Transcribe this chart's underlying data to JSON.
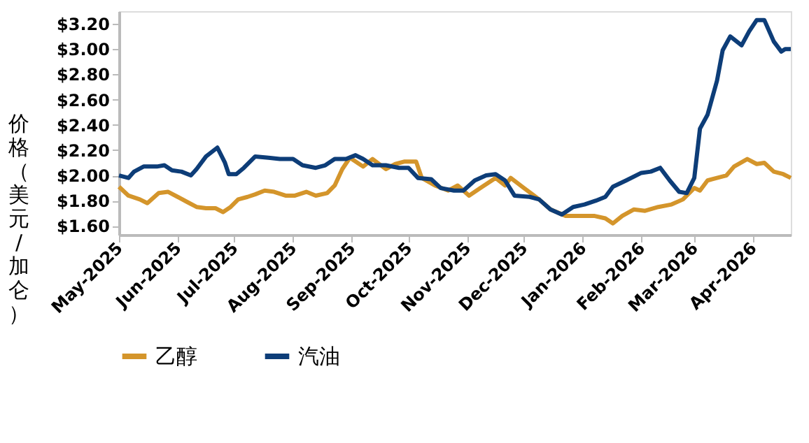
{
  "chart_data": {
    "type": "line",
    "ylabel": "价格（美元/加仑）",
    "xlim": [
      "2025-05-01",
      "2026-04-21"
    ],
    "ylim": [
      1.53,
      3.3
    ],
    "yticks": [
      {
        "value": 1.6,
        "label": "$1.60"
      },
      {
        "value": 1.8,
        "label": "$1.80"
      },
      {
        "value": 2.0,
        "label": "$2.00"
      },
      {
        "value": 2.2,
        "label": "$2.20"
      },
      {
        "value": 2.4,
        "label": "$2.40"
      },
      {
        "value": 2.6,
        "label": "$2.60"
      },
      {
        "value": 2.8,
        "label": "$2.80"
      },
      {
        "value": 3.0,
        "label": "$3.00"
      },
      {
        "value": 3.2,
        "label": "$3.20"
      }
    ],
    "xticks": [
      {
        "value": "2025-05-01",
        "label": "May-2025"
      },
      {
        "value": "2025-06-01",
        "label": "Jun-2025"
      },
      {
        "value": "2025-07-01",
        "label": "Jul-2025"
      },
      {
        "value": "2025-08-01",
        "label": "Aug-2025"
      },
      {
        "value": "2025-09-01",
        "label": "Sep-2025"
      },
      {
        "value": "2025-10-01",
        "label": "Oct-2025"
      },
      {
        "value": "2025-11-01",
        "label": "Nov-2025"
      },
      {
        "value": "2025-12-01",
        "label": "Dec-2025"
      },
      {
        "value": "2026-01-01",
        "label": "Jan-2026"
      },
      {
        "value": "2026-02-01",
        "label": "Feb-2026"
      },
      {
        "value": "2026-03-01",
        "label": "Mar-2026"
      },
      {
        "value": "2026-04-01",
        "label": "Apr-2026"
      }
    ],
    "grid": false,
    "legend": "bottom",
    "marker": "none",
    "line_style": "solid",
    "series": [
      {
        "name": "乙醇",
        "color": "#d4952b",
        "x": [
          "2025-05-01",
          "2025-05-06",
          "2025-05-12",
          "2025-05-16",
          "2025-05-22",
          "2025-05-27",
          "2025-06-01",
          "2025-06-06",
          "2025-06-11",
          "2025-06-16",
          "2025-06-21",
          "2025-06-25",
          "2025-06-29",
          "2025-07-03",
          "2025-07-08",
          "2025-07-12",
          "2025-07-17",
          "2025-07-22",
          "2025-07-28",
          "2025-08-02",
          "2025-08-08",
          "2025-08-13",
          "2025-08-19",
          "2025-08-23",
          "2025-08-27",
          "2025-08-31",
          "2025-09-07",
          "2025-09-12",
          "2025-09-19",
          "2025-09-24",
          "2025-09-29",
          "2025-10-05",
          "2025-10-08",
          "2025-10-15",
          "2025-10-22",
          "2025-10-27",
          "2025-11-02",
          "2025-11-08",
          "2025-11-16",
          "2025-11-21",
          "2025-11-24",
          "2025-12-01",
          "2025-12-09",
          "2025-12-15",
          "2025-12-23",
          "2025-12-31",
          "2026-01-07",
          "2026-01-13",
          "2026-01-17",
          "2026-01-22",
          "2026-01-28",
          "2026-02-03",
          "2026-02-10",
          "2026-02-17",
          "2026-02-23",
          "2026-03-01",
          "2026-03-04",
          "2026-03-08",
          "2026-03-13",
          "2026-03-18",
          "2026-03-22",
          "2026-03-29",
          "2026-04-03",
          "2026-04-07",
          "2026-04-12",
          "2026-04-17",
          "2026-04-21"
        ],
        "values": [
          1.91,
          1.84,
          1.81,
          1.78,
          1.86,
          1.87,
          1.83,
          1.79,
          1.75,
          1.74,
          1.74,
          1.71,
          1.75,
          1.81,
          1.83,
          1.85,
          1.88,
          1.87,
          1.84,
          1.84,
          1.87,
          1.84,
          1.86,
          1.92,
          2.05,
          2.14,
          2.07,
          2.13,
          2.05,
          2.09,
          2.11,
          2.11,
          1.98,
          1.92,
          1.88,
          1.92,
          1.84,
          1.9,
          1.98,
          1.92,
          1.98,
          1.9,
          1.81,
          1.73,
          1.68,
          1.68,
          1.68,
          1.66,
          1.62,
          1.68,
          1.73,
          1.72,
          1.75,
          1.77,
          1.81,
          1.9,
          1.88,
          1.96,
          1.98,
          2.0,
          2.07,
          2.13,
          2.09,
          2.1,
          2.03,
          2.01,
          1.98
        ]
      },
      {
        "name": "汽油",
        "color": "#0d3d78",
        "x": [
          "2025-05-01",
          "2025-05-06",
          "2025-05-09",
          "2025-05-14",
          "2025-05-21",
          "2025-05-25",
          "2025-05-29",
          "2025-06-03",
          "2025-06-08",
          "2025-06-11",
          "2025-06-16",
          "2025-06-22",
          "2025-06-26",
          "2025-06-28",
          "2025-07-02",
          "2025-07-06",
          "2025-07-12",
          "2025-07-19",
          "2025-07-25",
          "2025-08-01",
          "2025-08-06",
          "2025-08-13",
          "2025-08-18",
          "2025-08-23",
          "2025-08-29",
          "2025-09-03",
          "2025-09-07",
          "2025-09-12",
          "2025-09-19",
          "2025-09-26",
          "2025-10-01",
          "2025-10-06",
          "2025-10-13",
          "2025-10-18",
          "2025-10-25",
          "2025-10-30",
          "2025-11-05",
          "2025-11-11",
          "2025-11-16",
          "2025-11-21",
          "2025-11-26",
          "2025-12-04",
          "2025-12-09",
          "2025-12-15",
          "2025-12-21",
          "2025-12-27",
          "2026-01-02",
          "2026-01-08",
          "2026-01-13",
          "2026-01-17",
          "2026-01-24",
          "2026-02-01",
          "2026-02-06",
          "2026-02-11",
          "2026-02-16",
          "2026-02-21",
          "2026-02-25",
          "2026-03-01",
          "2026-03-04",
          "2026-03-08",
          "2026-03-13",
          "2026-03-16",
          "2026-03-20",
          "2026-03-26",
          "2026-03-30",
          "2026-04-03",
          "2026-04-07",
          "2026-04-12",
          "2026-04-16",
          "2026-04-18",
          "2026-04-21"
        ],
        "values": [
          2.0,
          1.98,
          2.03,
          2.07,
          2.07,
          2.08,
          2.04,
          2.03,
          2.0,
          2.05,
          2.15,
          2.22,
          2.1,
          2.01,
          2.01,
          2.06,
          2.15,
          2.14,
          2.13,
          2.13,
          2.08,
          2.06,
          2.08,
          2.13,
          2.13,
          2.16,
          2.13,
          2.08,
          2.08,
          2.06,
          2.06,
          1.98,
          1.97,
          1.9,
          1.88,
          1.88,
          1.96,
          2.0,
          2.01,
          1.96,
          1.84,
          1.83,
          1.81,
          1.73,
          1.69,
          1.75,
          1.77,
          1.8,
          1.83,
          1.91,
          1.96,
          2.02,
          2.03,
          2.06,
          1.96,
          1.87,
          1.86,
          1.98,
          2.37,
          2.48,
          2.75,
          2.99,
          3.1,
          3.03,
          3.14,
          3.23,
          3.23,
          3.06,
          2.98,
          3.0,
          3.0
        ]
      }
    ]
  }
}
